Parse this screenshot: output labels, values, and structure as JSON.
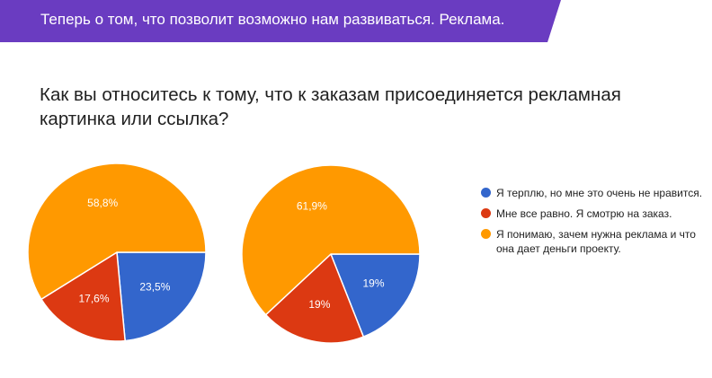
{
  "banner": {
    "text": "Теперь о том, что позволит возможно нам развиваться. Реклама."
  },
  "question": "Как вы относитесь к тому, что к заказам присоединяется рекламная картинка или ссылка?",
  "chart_data": [
    {
      "type": "pie",
      "categories": [
        "Я терплю, но мне это очень не нравится.",
        "Мне все равно. Я смотрю на заказ.",
        "Я понимаю, зачем нужна реклама и что она дает деньги проекту."
      ],
      "values": [
        23.5,
        17.6,
        58.8
      ],
      "labels": [
        "23,5%",
        "17,6%",
        "58,8%"
      ],
      "colors": [
        "#3366cc",
        "#dc3912",
        "#ff9900"
      ]
    },
    {
      "type": "pie",
      "categories": [
        "Я терплю, но мне это очень не нравится.",
        "Мне все равно. Я смотрю на заказ.",
        "Я понимаю, зачем нужна реклама и что она дает деньги проекту."
      ],
      "values": [
        19,
        19,
        61.9
      ],
      "labels": [
        "19%",
        "19%",
        "61,9%"
      ],
      "colors": [
        "#3366cc",
        "#dc3912",
        "#ff9900"
      ]
    }
  ],
  "legend": {
    "placement": "right",
    "items": [
      {
        "label": "Я терплю, но мне это очень не нравится.",
        "color": "#3366cc"
      },
      {
        "label": "Мне все равно. Я смотрю на заказ.",
        "color": "#dc3912"
      },
      {
        "label": "Я понимаю, зачем нужна реклама и что она дает деньги проекту.",
        "color": "#ff9900"
      }
    ]
  }
}
